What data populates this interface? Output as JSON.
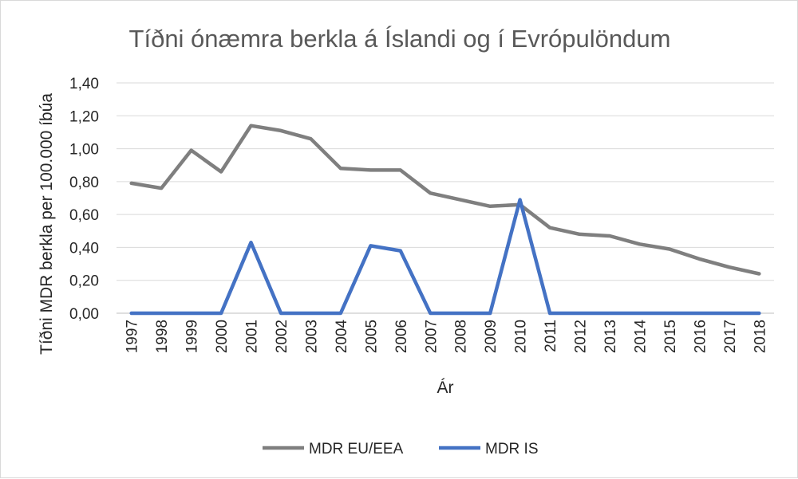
{
  "chart_data": {
    "type": "line",
    "title": "Tíðni ónæmra berkla á Íslandi og í Evrópulöndum",
    "xlabel": "Ár",
    "ylabel": "Tíðni MDR berkla per 100.000 íbúa",
    "ylim": [
      0,
      1.4
    ],
    "yticks": [
      "0,00",
      "0,20",
      "0,40",
      "0,60",
      "0,80",
      "1,00",
      "1,20",
      "1,40"
    ],
    "grid": true,
    "legend_position": "bottom",
    "categories": [
      "1997",
      "1998",
      "1999",
      "2000",
      "2001",
      "2002",
      "2003",
      "2004",
      "2005",
      "2006",
      "2007",
      "2008",
      "2009",
      "2010",
      "2011",
      "2012",
      "2013",
      "2014",
      "2015",
      "2016",
      "2017",
      "2018"
    ],
    "series": [
      {
        "name": "MDR EU/EEA",
        "color": "#7f7f7f",
        "values": [
          0.79,
          0.76,
          0.99,
          0.86,
          1.14,
          1.11,
          1.06,
          0.88,
          0.87,
          0.87,
          0.73,
          0.69,
          0.65,
          0.66,
          0.52,
          0.48,
          0.47,
          0.42,
          0.39,
          0.33,
          0.28,
          0.24
        ]
      },
      {
        "name": "MDR IS",
        "color": "#4472c4",
        "values": [
          0,
          0,
          0,
          0,
          0.43,
          0,
          0,
          0,
          0.41,
          0.38,
          0,
          0,
          0,
          0.69,
          0,
          0,
          0,
          0,
          0,
          0,
          0,
          0
        ]
      }
    ]
  }
}
